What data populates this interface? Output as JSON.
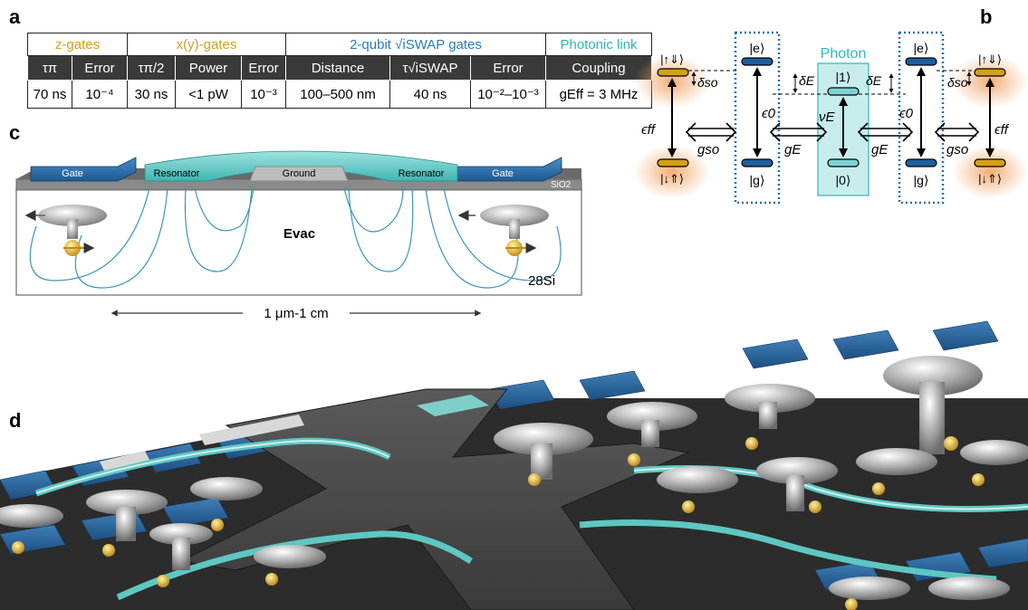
{
  "panels": {
    "a": "a",
    "b": "b",
    "c": "c",
    "d": "d"
  },
  "table": {
    "groups": [
      {
        "label": "z-gates",
        "color": "#d4a017"
      },
      {
        "label": "x(y)-gates",
        "color": "#c9a227"
      },
      {
        "label": "2-qubit √iSWAP gates",
        "color": "#2b7bb9"
      },
      {
        "label": "Photonic link",
        "color": "#2fb8b8"
      }
    ],
    "headers": [
      "τπ",
      "Error",
      "τπ/2",
      "Power",
      "Error",
      "Distance",
      "τ√iSWAP",
      "Error",
      "Coupling"
    ],
    "values": [
      "70 ns",
      "10⁻⁴",
      "30 ns",
      "<1 pW",
      "10⁻³",
      "100–500 nm",
      "40 ns",
      "10⁻²–10⁻³",
      "gEff = 3 MHz"
    ]
  },
  "diagram_b": {
    "photon_label": "Photon",
    "states": {
      "up_down": "|↑⇓⟩",
      "down_up": "|↓⇑⟩",
      "e": "|e⟩",
      "g": "|g⟩",
      "one": "|1⟩",
      "zero": "|0⟩"
    },
    "couplings": {
      "eps_ff": "ϵff",
      "eps_0": "ϵ0",
      "nu_E": "νE",
      "g_so": "gso",
      "g_E": "gE",
      "delta_so": "δso",
      "delta_E": "δE"
    }
  },
  "diagram_c": {
    "labels": {
      "gate": "Gate",
      "resonator": "Resonator",
      "ground": "Ground",
      "sio2": "SiO2",
      "evac": "Evac",
      "si": "28Si",
      "distance": "1 μm-1 cm"
    }
  }
}
